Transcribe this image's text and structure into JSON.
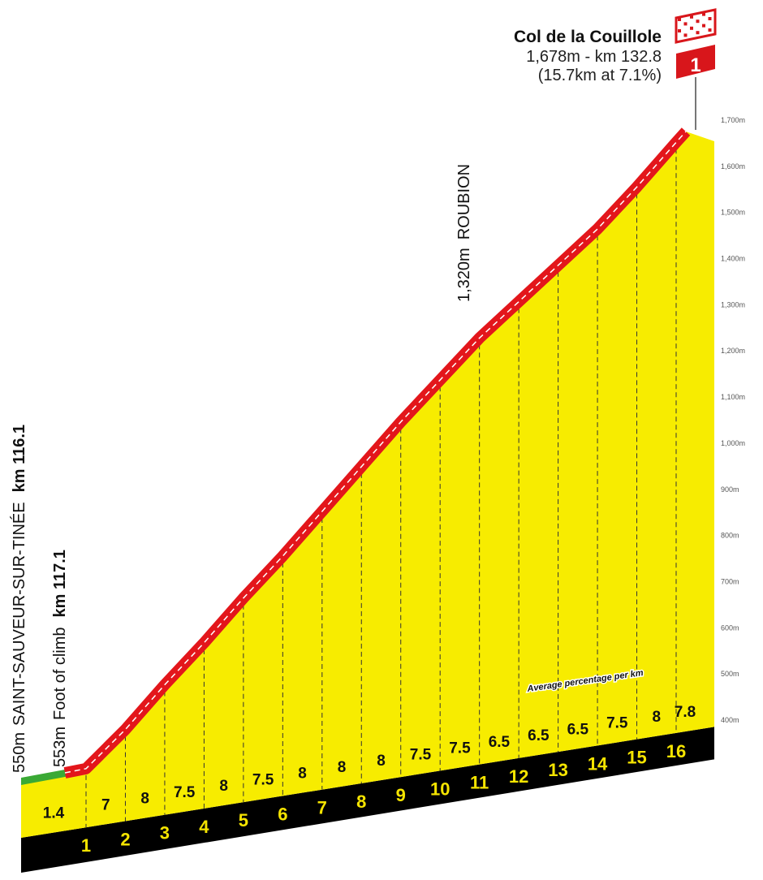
{
  "chart_data": {
    "type": "area",
    "title": "Col de la Couillole",
    "summary": {
      "line1": "1,678m -  km 132.8",
      "line2": "(15.7km at 7.1%)"
    },
    "category_badge": "1",
    "start": {
      "elevation_label": "550m",
      "name": "SAINT-SAUVEUR-SUR-TINÉE",
      "km": "km 116.1"
    },
    "foot": {
      "elevation_label": "553m",
      "name": "Foot of climb",
      "km": "km 117.1"
    },
    "waypoint": {
      "elevation_label": "1,320m",
      "name": "ROUBION"
    },
    "start_elevation": 553,
    "summit_elevation": 1678,
    "gradients": [
      1.4,
      7,
      8,
      7.5,
      8,
      7.5,
      8,
      8,
      8,
      7.5,
      7.5,
      6.5,
      6.5,
      6.5,
      7.5,
      8,
      7.8
    ],
    "gradient_labels": [
      "1.4",
      "7",
      "8",
      "7.5",
      "8",
      "7.5",
      "8",
      "8",
      "8",
      "7.5",
      "7.5",
      "6.5",
      "6.5",
      "6.5",
      "7.5",
      "8",
      "7.8"
    ],
    "km_markers": [
      "1",
      "2",
      "3",
      "4",
      "5",
      "6",
      "7",
      "8",
      "9",
      "10",
      "11",
      "12",
      "13",
      "14",
      "15",
      "16"
    ],
    "y_ticks": [
      "400m",
      "500m",
      "600m",
      "700m",
      "800m",
      "900m",
      "1,000m",
      "1,100m",
      "1,200m",
      "1,300m",
      "1,400m",
      "1,500m",
      "1,600m",
      "1,700m"
    ],
    "ylim": [
      400,
      1700
    ],
    "legend_note": "Average percentage per km",
    "colors": {
      "fill": "#f7ec00",
      "road": "#e3161b",
      "base": "#000000",
      "start_segment": "#3aa935",
      "kom_red": "#d8161b"
    }
  }
}
